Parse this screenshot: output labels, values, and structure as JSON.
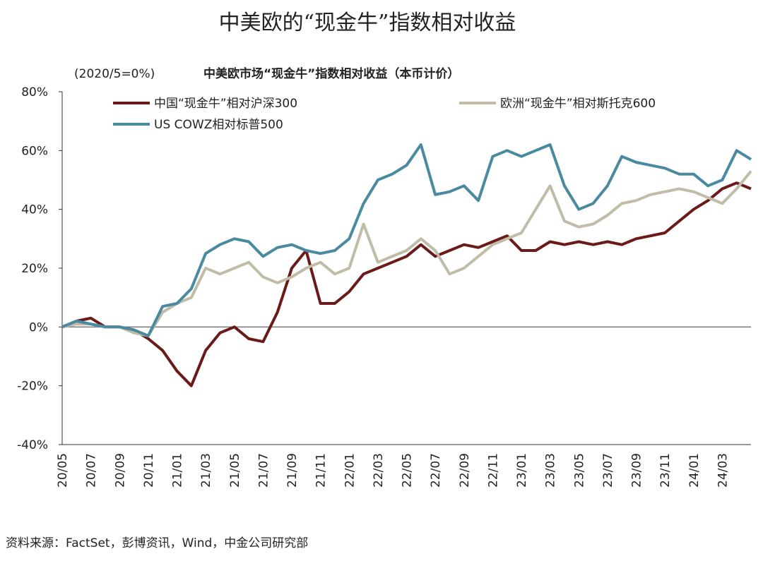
{
  "chart_data": {
    "type": "line",
    "title": "中美欧的“现金牛”指数相对收益",
    "subtitle": "中美欧市场“现金牛”指数相对收益（本币计价）",
    "note": "(2020/5=0%)",
    "source": "资料来源：FactSet，彭博资讯，Wind，中金公司研究部",
    "categories": [
      "20/05",
      null,
      "20/07",
      null,
      "20/09",
      null,
      "20/11",
      null,
      "21/01",
      null,
      "21/03",
      null,
      "21/05",
      null,
      "21/07",
      null,
      "21/09",
      null,
      "21/11",
      null,
      "22/01",
      null,
      "22/03",
      null,
      "22/05",
      null,
      "22/07",
      null,
      "22/09",
      null,
      "22/11",
      null,
      "23/01",
      null,
      "23/03",
      null,
      "23/05",
      null,
      "23/07",
      null,
      "23/09",
      null,
      "23/11",
      null,
      "24/01",
      null,
      "24/03",
      null,
      null
    ],
    "series": [
      {
        "name": "中国“现金牛”相对沪深300",
        "color": "#6b1a1a",
        "values": [
          0,
          2,
          3,
          0,
          0,
          -1,
          -4,
          -8,
          -15,
          -20,
          -8,
          -2,
          0,
          -4,
          -5,
          5,
          20,
          26,
          8,
          8,
          12,
          18,
          20,
          22,
          24,
          28,
          24,
          26,
          28,
          27,
          29,
          31,
          26,
          26,
          29,
          28,
          29,
          28,
          29,
          28,
          30,
          31,
          32,
          36,
          40,
          43,
          47,
          49,
          47
        ]
      },
      {
        "name": "欧洲“现金牛”相对斯托克600",
        "color": "#c0bca8",
        "values": [
          0,
          1,
          1,
          0,
          0,
          -2,
          -3,
          5,
          8,
          10,
          20,
          18,
          20,
          22,
          17,
          15,
          17,
          20,
          22,
          18,
          20,
          35,
          22,
          24,
          26,
          30,
          26,
          18,
          20,
          24,
          28,
          30,
          32,
          40,
          48,
          36,
          34,
          35,
          38,
          42,
          43,
          45,
          46,
          47,
          46,
          44,
          42,
          47,
          53
        ]
      },
      {
        "name": "US COWZ相对标普500",
        "color": "#4a8aa0",
        "values": [
          0,
          2,
          1,
          0,
          0,
          -1,
          -3,
          7,
          8,
          13,
          25,
          28,
          30,
          29,
          24,
          27,
          28,
          26,
          25,
          26,
          30,
          42,
          50,
          52,
          55,
          62,
          45,
          46,
          48,
          43,
          58,
          60,
          58,
          60,
          62,
          48,
          40,
          42,
          48,
          58,
          56,
          55,
          54,
          52,
          52,
          48,
          50,
          60,
          57
        ]
      }
    ],
    "ylim": [
      -40,
      80
    ],
    "yticks": [
      {
        "value": -40,
        "label": "-40%"
      },
      {
        "value": -20,
        "label": "-20%"
      },
      {
        "value": 0,
        "label": "0%"
      },
      {
        "value": 20,
        "label": "20%"
      },
      {
        "value": 40,
        "label": "40%"
      },
      {
        "value": 60,
        "label": "60%"
      },
      {
        "value": 80,
        "label": "80%"
      }
    ]
  }
}
